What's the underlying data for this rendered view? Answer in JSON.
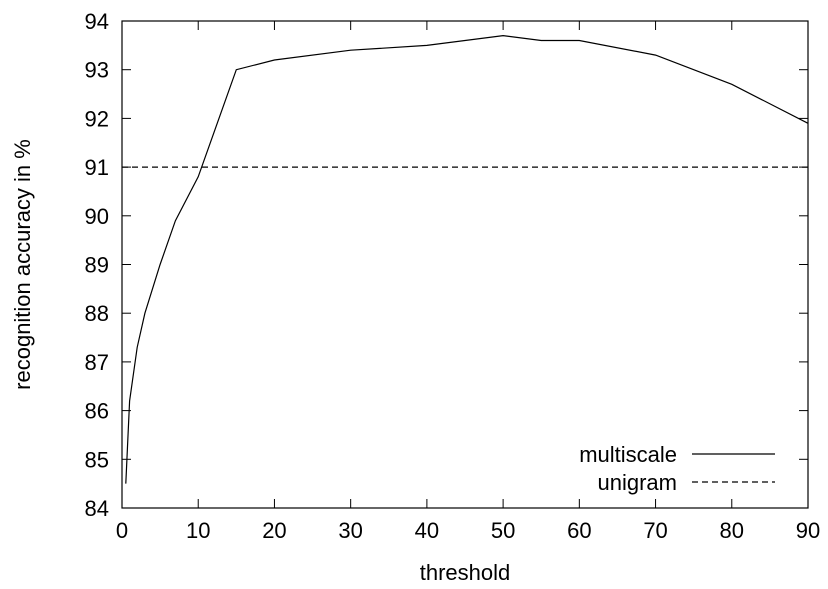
{
  "chart_data": {
    "type": "line",
    "title": "",
    "xlabel": "threshold",
    "ylabel": "recognition accuracy in %",
    "xlim": [
      0,
      90
    ],
    "ylim": [
      84,
      94
    ],
    "xticks": [
      "0",
      "10",
      "20",
      "30",
      "40",
      "50",
      "60",
      "70",
      "80",
      "90"
    ],
    "yticks": [
      "84",
      "85",
      "86",
      "87",
      "88",
      "89",
      "90",
      "91",
      "92",
      "93",
      "94"
    ],
    "grid": false,
    "legend_position": "bottom-right",
    "series": [
      {
        "name": "multiscale",
        "style": "solid",
        "color": "#000000",
        "x": [
          0.5,
          1,
          2,
          3,
          5,
          7,
          10,
          15,
          20,
          30,
          40,
          50,
          55,
          60,
          70,
          80,
          90
        ],
        "y": [
          84.5,
          86.2,
          87.3,
          88.0,
          89.0,
          89.9,
          90.8,
          93.0,
          93.2,
          93.4,
          93.5,
          93.7,
          93.6,
          93.6,
          93.3,
          92.7,
          91.9
        ]
      },
      {
        "name": "unigram",
        "style": "dashed",
        "color": "#000000",
        "x": [
          0,
          90
        ],
        "y": [
          91,
          91
        ]
      }
    ]
  }
}
